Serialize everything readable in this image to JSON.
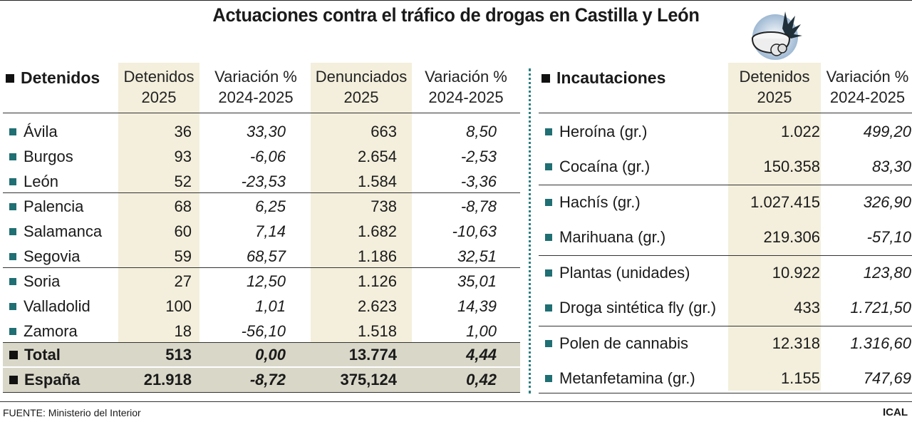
{
  "title": "Actuaciones contra el tráfico de drogas en Castilla y León",
  "left": {
    "section_title": "Detenidos",
    "headers": [
      {
        "line1": "Detenidos",
        "line2": "2025"
      },
      {
        "line1": "Variación %",
        "line2": "2024-2025"
      },
      {
        "line1": "Denunciados",
        "line2": "2025"
      },
      {
        "line1": "Variación %",
        "line2": "2024-2025"
      }
    ],
    "rows": [
      {
        "name": "Ávila",
        "det": "36",
        "var1": "33,30",
        "den": "663",
        "var2": "8,50"
      },
      {
        "name": "Burgos",
        "det": "93",
        "var1": "-6,06",
        "den": "2.654",
        "var2": "-2,53"
      },
      {
        "name": "León",
        "det": "52",
        "var1": "-23,53",
        "den": "1.584",
        "var2": "-3,36"
      },
      {
        "name": "Palencia",
        "det": "68",
        "var1": "6,25",
        "den": "738",
        "var2": "-8,78"
      },
      {
        "name": "Salamanca",
        "det": "60",
        "var1": "7,14",
        "den": "1.682",
        "var2": "-10,63"
      },
      {
        "name": "Segovia",
        "det": "59",
        "var1": "68,57",
        "den": "1.186",
        "var2": "32,51"
      },
      {
        "name": "Soria",
        "det": "27",
        "var1": "12,50",
        "den": "1.126",
        "var2": "35,01"
      },
      {
        "name": "Valladolid",
        "det": "100",
        "var1": "1,01",
        "den": "2.623",
        "var2": "14,39"
      },
      {
        "name": "Zamora",
        "det": "18",
        "var1": "-56,10",
        "den": "1.518",
        "var2": "1,00"
      }
    ],
    "totals": [
      {
        "name": "Total",
        "det": "513",
        "var1": "0,00",
        "den": "13.774",
        "var2": "4,44"
      },
      {
        "name": "España",
        "det": "21.918",
        "var1": "-8,72",
        "den": "375,124",
        "var2": "0,42"
      }
    ]
  },
  "right": {
    "section_title": "Incautaciones",
    "headers": [
      {
        "line1": "Detenidos",
        "line2": "2025"
      },
      {
        "line1": "Variación %",
        "line2": "2024-2025"
      }
    ],
    "rows": [
      {
        "name": "Heroína (gr.)",
        "det": "1.022",
        "var": "499,20"
      },
      {
        "name": "Cocaína (gr.)",
        "det": "150.358",
        "var": "83,30"
      },
      {
        "name": "Hachís (gr.)",
        "det": "1.027.415",
        "var": "326,90"
      },
      {
        "name": "Marihuana (gr.)",
        "det": "219.306",
        "var": "-57,10"
      },
      {
        "name": "Plantas (unidades)",
        "det": "10.922",
        "var": "123,80"
      },
      {
        "name": "Droga sintética fly (gr.)",
        "det": "433",
        "var": "1.721,50"
      },
      {
        "name": "Polen de cannabis",
        "det": "12.318",
        "var": "1.316,60"
      },
      {
        "name": "Metanfetamina (gr.)",
        "det": "1.155",
        "var": "747,69"
      }
    ]
  },
  "footer": {
    "source": "FUENTE: Ministerio del Interior",
    "agency": "ICAL"
  },
  "colors": {
    "shade": "#f3efdc",
    "total_band": "#d9d7c8",
    "bullet": "#1f6f73",
    "divider": "#2a7f82"
  },
  "icon": "drugs-cannabis-leaf-icon"
}
